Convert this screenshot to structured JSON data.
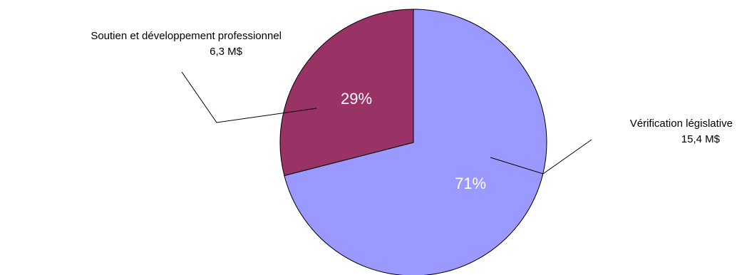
{
  "chart_data": {
    "type": "pie",
    "title": "",
    "slices": [
      {
        "label": "Vérification législative",
        "amount": "15,4 M$",
        "value": 71,
        "percent_label": "71%",
        "color": "#9999ff"
      },
      {
        "label": "Soutien et développement professionnel",
        "amount": "6,3 M$",
        "value": 29,
        "percent_label": "29%",
        "color": "#993366"
      }
    ],
    "start_angle_deg": 0,
    "direction": "clockwise",
    "slice_border_color": "#000000",
    "legend": "none"
  }
}
